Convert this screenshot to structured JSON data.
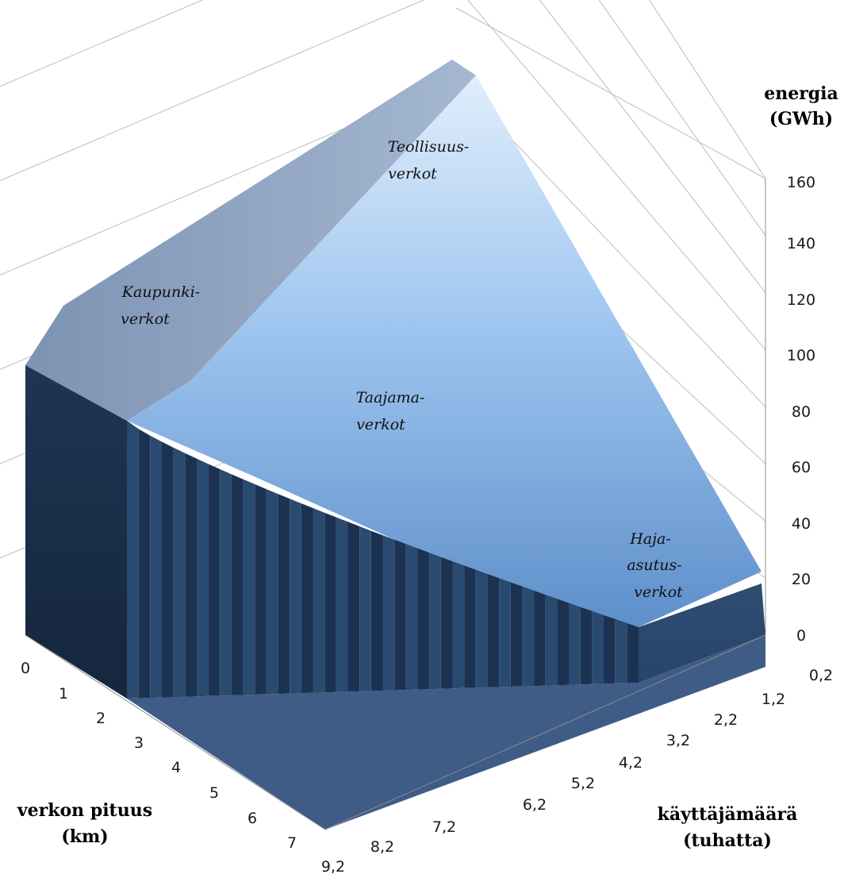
{
  "chart_data": {
    "type": "surface",
    "title": "",
    "z_axis": {
      "label_line1": "energia",
      "label_line2": "(GWh)",
      "ticks": [
        "0",
        "20",
        "40",
        "60",
        "80",
        "100",
        "120",
        "140",
        "160"
      ],
      "range": [
        0,
        160
      ]
    },
    "x_axis": {
      "label_line1": "verkon pituus",
      "label_line2": "(km)",
      "ticks": [
        "0",
        "1",
        "2",
        "3",
        "4",
        "5",
        "6",
        "7"
      ]
    },
    "y_axis": {
      "label_line1": "käyttäjämäärä",
      "label_line2": "(tuhatta)",
      "ticks": [
        "0,2",
        "1,2",
        "2,2",
        "3,2",
        "4,2",
        "5,2",
        "6,2",
        "7,2",
        "8,2",
        "9,2"
      ]
    },
    "regions": [
      {
        "line1": "Teollisuus-",
        "line2": "verkot"
      },
      {
        "line1": "Kaupunki-",
        "line2": "verkot"
      },
      {
        "line1": "Taajama-",
        "line2": "verkot"
      },
      {
        "line1": "Haja-",
        "line2": "asutus-",
        "line3": "verkot"
      }
    ],
    "band_colors": [
      "#dbe9fa",
      "#c4dcf6",
      "#a9ccf2",
      "#8fbcec",
      "#78ade6",
      "#6a9fdc",
      "#6095d0",
      "#5787c0",
      "#4c78ae"
    ],
    "grid": true
  }
}
